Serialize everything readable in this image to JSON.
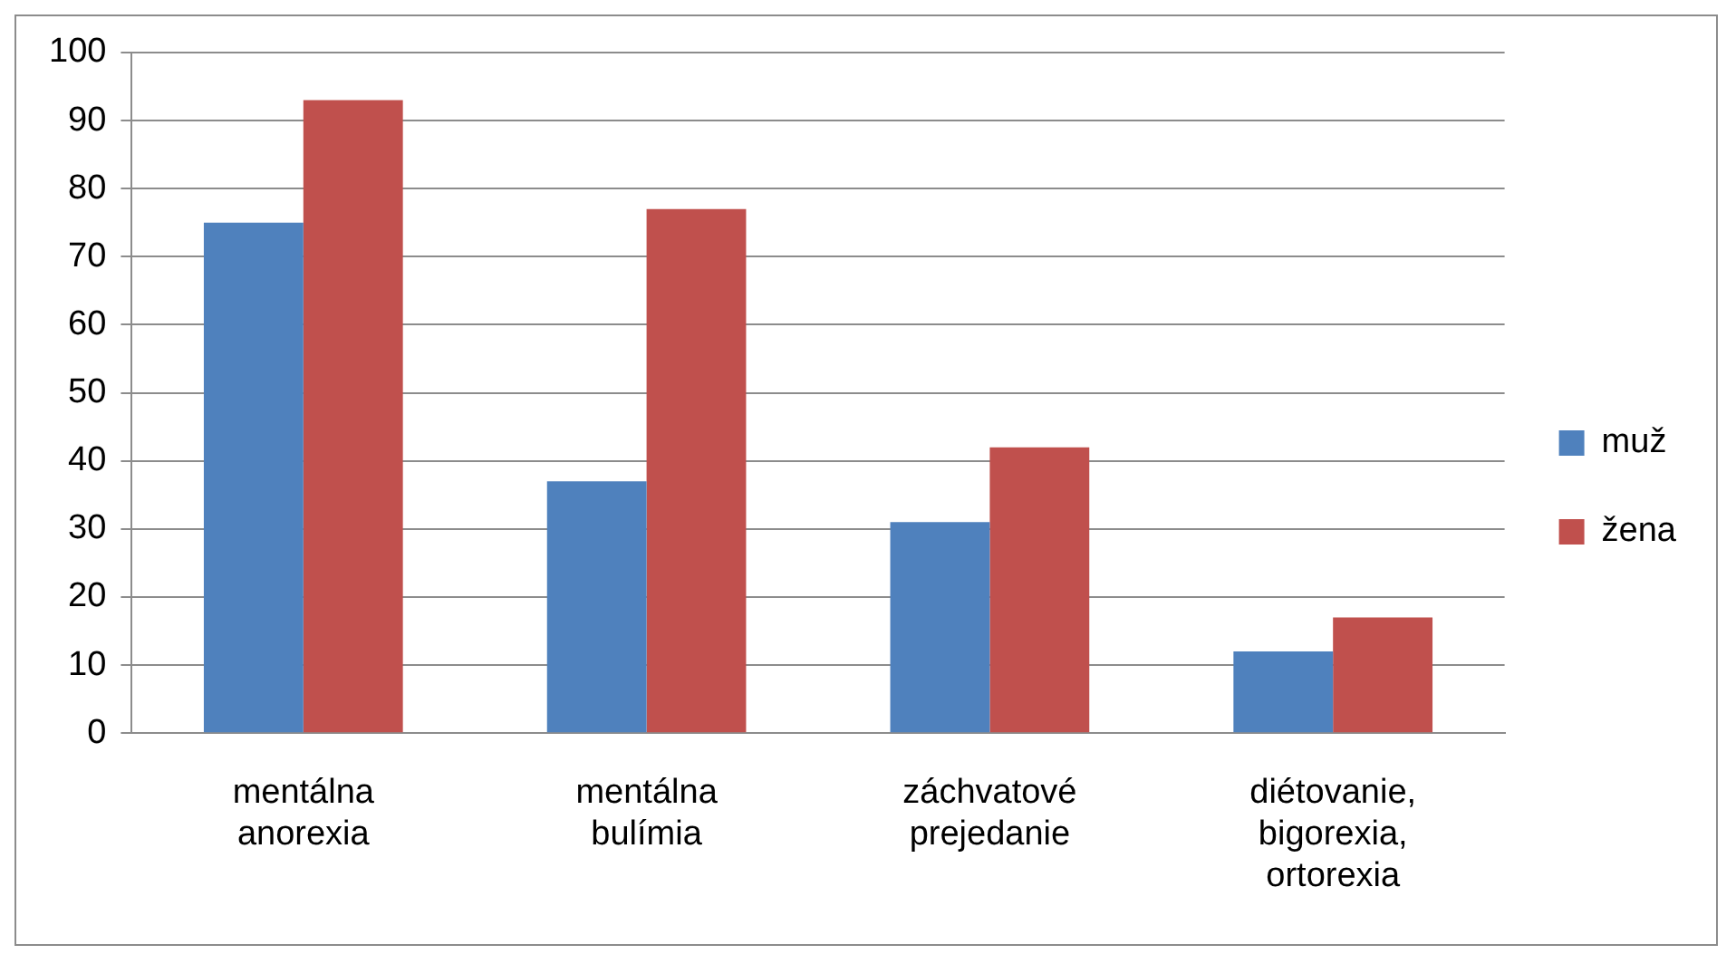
{
  "chart_data": {
    "type": "bar",
    "categories": [
      "mentálna anorexia",
      "mentálna bulímia",
      "záchvatové prejedanie",
      "diétovanie, bigorexia, ortorexia"
    ],
    "series": [
      {
        "name": "muž",
        "color": "#4f81bd",
        "values": [
          75,
          37,
          31,
          12
        ]
      },
      {
        "name": "žena",
        "color": "#c0504d",
        "values": [
          93,
          77,
          42,
          17
        ]
      }
    ],
    "ylim": [
      0,
      100
    ],
    "yticks": [
      0,
      10,
      20,
      30,
      40,
      50,
      60,
      70,
      80,
      90,
      100
    ],
    "grid": "y",
    "legend": "right"
  }
}
